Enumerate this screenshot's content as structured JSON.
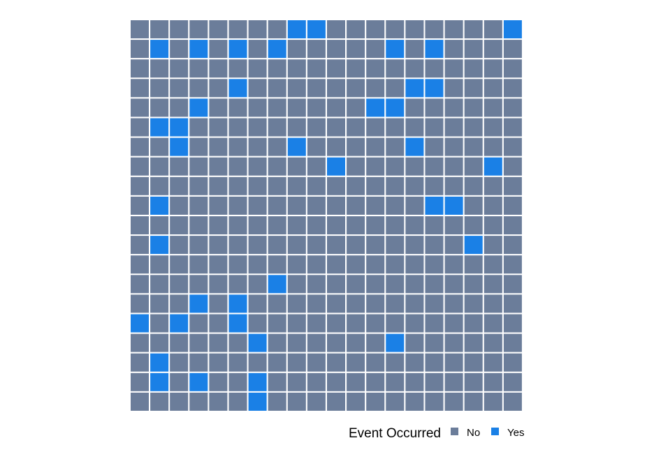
{
  "chart_data": {
    "type": "heatmap",
    "title": "",
    "xlabel": "",
    "ylabel": "",
    "rows": 20,
    "cols": 20,
    "grid": false,
    "legend_position": "bottom-right",
    "legend": {
      "title": "Event Occurred",
      "entries": [
        {
          "label": "No",
          "color": "#6B7D9A"
        },
        {
          "label": "Yes",
          "color": "#1A80E6"
        }
      ]
    },
    "values": [
      [
        0,
        0,
        0,
        0,
        0,
        0,
        0,
        0,
        1,
        1,
        0,
        0,
        0,
        0,
        0,
        0,
        0,
        0,
        0,
        1
      ],
      [
        0,
        1,
        0,
        1,
        0,
        1,
        0,
        1,
        0,
        0,
        0,
        0,
        0,
        1,
        0,
        1,
        0,
        0,
        0,
        0
      ],
      [
        0,
        0,
        0,
        0,
        0,
        0,
        0,
        0,
        0,
        0,
        0,
        0,
        0,
        0,
        0,
        0,
        0,
        0,
        0,
        0
      ],
      [
        0,
        0,
        0,
        0,
        0,
        1,
        0,
        0,
        0,
        0,
        0,
        0,
        0,
        0,
        1,
        1,
        0,
        0,
        0,
        0
      ],
      [
        0,
        0,
        0,
        1,
        0,
        0,
        0,
        0,
        0,
        0,
        0,
        0,
        1,
        1,
        0,
        0,
        0,
        0,
        0,
        0
      ],
      [
        0,
        1,
        1,
        0,
        0,
        0,
        0,
        0,
        0,
        0,
        0,
        0,
        0,
        0,
        0,
        0,
        0,
        0,
        0,
        0
      ],
      [
        0,
        0,
        1,
        0,
        0,
        0,
        0,
        0,
        1,
        0,
        0,
        0,
        0,
        0,
        1,
        0,
        0,
        0,
        0,
        0
      ],
      [
        0,
        0,
        0,
        0,
        0,
        0,
        0,
        0,
        0,
        0,
        1,
        0,
        0,
        0,
        0,
        0,
        0,
        0,
        1,
        0
      ],
      [
        0,
        0,
        0,
        0,
        0,
        0,
        0,
        0,
        0,
        0,
        0,
        0,
        0,
        0,
        0,
        0,
        0,
        0,
        0,
        0
      ],
      [
        0,
        1,
        0,
        0,
        0,
        0,
        0,
        0,
        0,
        0,
        0,
        0,
        0,
        0,
        0,
        1,
        1,
        0,
        0,
        0
      ],
      [
        0,
        0,
        0,
        0,
        0,
        0,
        0,
        0,
        0,
        0,
        0,
        0,
        0,
        0,
        0,
        0,
        0,
        0,
        0,
        0
      ],
      [
        0,
        1,
        0,
        0,
        0,
        0,
        0,
        0,
        0,
        0,
        0,
        0,
        0,
        0,
        0,
        0,
        0,
        1,
        0,
        0
      ],
      [
        0,
        0,
        0,
        0,
        0,
        0,
        0,
        0,
        0,
        0,
        0,
        0,
        0,
        0,
        0,
        0,
        0,
        0,
        0,
        0
      ],
      [
        0,
        0,
        0,
        0,
        0,
        0,
        0,
        1,
        0,
        0,
        0,
        0,
        0,
        0,
        0,
        0,
        0,
        0,
        0,
        0
      ],
      [
        0,
        0,
        0,
        1,
        0,
        1,
        0,
        0,
        0,
        0,
        0,
        0,
        0,
        0,
        0,
        0,
        0,
        0,
        0,
        0
      ],
      [
        1,
        0,
        1,
        0,
        0,
        1,
        0,
        0,
        0,
        0,
        0,
        0,
        0,
        0,
        0,
        0,
        0,
        0,
        0,
        0
      ],
      [
        0,
        0,
        0,
        0,
        0,
        0,
        1,
        0,
        0,
        0,
        0,
        0,
        0,
        1,
        0,
        0,
        0,
        0,
        0,
        0
      ],
      [
        0,
        1,
        0,
        0,
        0,
        0,
        0,
        0,
        0,
        0,
        0,
        0,
        0,
        0,
        0,
        0,
        0,
        0,
        0,
        0
      ],
      [
        0,
        1,
        0,
        1,
        0,
        0,
        1,
        0,
        0,
        0,
        0,
        0,
        0,
        0,
        0,
        0,
        0,
        0,
        0,
        0
      ],
      [
        0,
        0,
        0,
        0,
        0,
        0,
        1,
        0,
        0,
        0,
        0,
        0,
        0,
        0,
        0,
        0,
        0,
        0,
        0,
        0
      ]
    ]
  }
}
